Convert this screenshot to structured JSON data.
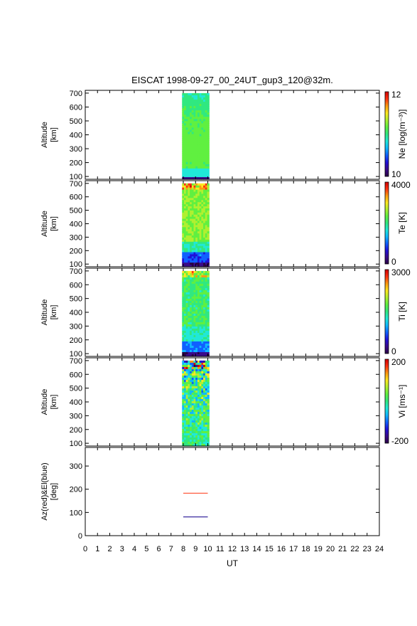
{
  "figure": {
    "title": "EISCAT 1998-09-27_00_24UT_gup3_120@32m.",
    "xlabel": "UT"
  },
  "chart_data": {
    "type": "heatmap",
    "title": "EISCAT 1998-09-27_00_24UT_gup3_120@32m.",
    "xlabel": "UT",
    "xlim": [
      0,
      24
    ],
    "xticks": [
      "0",
      "1",
      "2",
      "3",
      "4",
      "5",
      "6",
      "7",
      "8",
      "9",
      "10",
      "11",
      "12",
      "13",
      "14",
      "15",
      "16",
      "17",
      "18",
      "19",
      "20",
      "21",
      "22",
      "23",
      "24"
    ],
    "data_time_range": [
      7.9,
      10.1
    ],
    "panels": [
      {
        "id": "ne",
        "ylabel": [
          "Altitude",
          "[km]"
        ],
        "yticks": [
          "100",
          "200",
          "300",
          "400",
          "500",
          "600",
          "700"
        ],
        "ylim": [
          80,
          720
        ],
        "cbar_label": "Ne [log(m⁻³)]",
        "cbar_ticks": [
          "12",
          "10"
        ],
        "cbar_range": [
          10,
          12
        ],
        "alt_range": [
          80,
          700
        ],
        "colorscale": "rainbow"
      },
      {
        "id": "te",
        "ylabel": [
          "Altitude",
          "[km]"
        ],
        "yticks": [
          "100",
          "200",
          "300",
          "400",
          "500",
          "600",
          "700"
        ],
        "ylim": [
          80,
          720
        ],
        "cbar_label": "Te [K]",
        "cbar_ticks": [
          "4000",
          "0"
        ],
        "cbar_range": [
          0,
          4000
        ],
        "alt_range": [
          80,
          700
        ],
        "colorscale": "rainbow"
      },
      {
        "id": "ti",
        "ylabel": [
          "Altitude",
          "[km]"
        ],
        "yticks": [
          "100",
          "200",
          "300",
          "400",
          "500",
          "600",
          "700"
        ],
        "ylim": [
          80,
          720
        ],
        "cbar_label": "Ti [K]",
        "cbar_ticks": [
          "3000",
          "0"
        ],
        "cbar_range": [
          0,
          3000
        ],
        "alt_range": [
          80,
          700
        ],
        "colorscale": "rainbow"
      },
      {
        "id": "vi",
        "ylabel": [
          "Altitude",
          "[km]"
        ],
        "yticks": [
          "100",
          "200",
          "300",
          "400",
          "500",
          "600",
          "700"
        ],
        "ylim": [
          80,
          720
        ],
        "cbar_label": "Vi [ms⁻¹]",
        "cbar_ticks": [
          "200",
          "-200"
        ],
        "cbar_range": [
          -200,
          200
        ],
        "alt_range": [
          80,
          700
        ],
        "colorscale": "rainbow"
      }
    ],
    "line_panel": {
      "ylabel": [
        "Az(red)&El(blue)",
        "[deg]"
      ],
      "yticks": [
        "0",
        "100",
        "200",
        "300"
      ],
      "ylim": [
        0,
        380
      ],
      "series": [
        {
          "x": [
            8.0,
            10.0
          ],
          "y": [
            183,
            183
          ],
          "color": "#ff4a2a"
        },
        {
          "x": [
            8.0,
            10.0
          ],
          "y": [
            81,
            81
          ],
          "color": "#3a2aa0"
        }
      ]
    }
  },
  "colors": {
    "axis": "#000000",
    "rainbow": [
      "#2a0044",
      "#3a0a8a",
      "#2010d8",
      "#1060ff",
      "#10b8ff",
      "#20e8d8",
      "#30e880",
      "#60f040",
      "#b0f030",
      "#ffe820",
      "#ff9a10",
      "#ff3010",
      "#d00000"
    ]
  }
}
